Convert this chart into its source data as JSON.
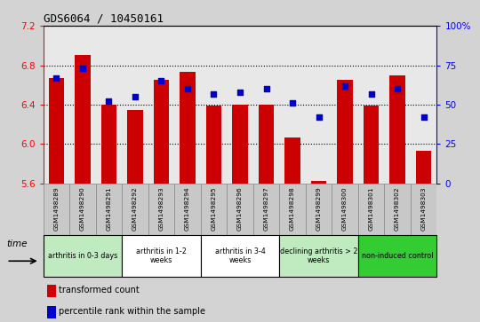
{
  "title": "GDS6064 / 10450161",
  "samples": [
    "GSM1498289",
    "GSM1498290",
    "GSM1498291",
    "GSM1498292",
    "GSM1498293",
    "GSM1498294",
    "GSM1498295",
    "GSM1498296",
    "GSM1498297",
    "GSM1498298",
    "GSM1498299",
    "GSM1498300",
    "GSM1498301",
    "GSM1498302",
    "GSM1498303"
  ],
  "bar_values": [
    6.67,
    6.9,
    6.4,
    6.35,
    6.65,
    6.73,
    6.39,
    6.4,
    6.4,
    6.07,
    5.63,
    6.65,
    6.39,
    6.7,
    5.93
  ],
  "percentile_values": [
    67,
    73,
    52,
    55,
    65,
    60,
    57,
    58,
    60,
    51,
    42,
    62,
    57,
    60,
    42
  ],
  "ylim_left": [
    5.6,
    7.2
  ],
  "ylim_right": [
    0,
    100
  ],
  "yticks_left": [
    5.6,
    6.0,
    6.4,
    6.8,
    7.2
  ],
  "yticks_right": [
    0,
    25,
    50,
    75,
    100
  ],
  "bar_color": "#cc0000",
  "dot_color": "#0000cc",
  "groups": [
    {
      "label": "arthritis in 0-3 days",
      "start": 0,
      "end": 3,
      "color": "#c0ebc0"
    },
    {
      "label": "arthritis in 1-2\nweeks",
      "start": 3,
      "end": 6,
      "color": "#ffffff"
    },
    {
      "label": "arthritis in 3-4\nweeks",
      "start": 6,
      "end": 9,
      "color": "#ffffff"
    },
    {
      "label": "declining arthritis > 2\nweeks",
      "start": 9,
      "end": 12,
      "color": "#c0ebc0"
    },
    {
      "label": "non-induced control",
      "start": 12,
      "end": 15,
      "color": "#33cc33"
    }
  ],
  "legend_bar_label": "transformed count",
  "legend_dot_label": "percentile rank within the sample",
  "time_label": "time",
  "bg_color": "#d3d3d3",
  "plot_bg_color": "#e8e8e8",
  "sample_box_color": "#c8c8c8"
}
